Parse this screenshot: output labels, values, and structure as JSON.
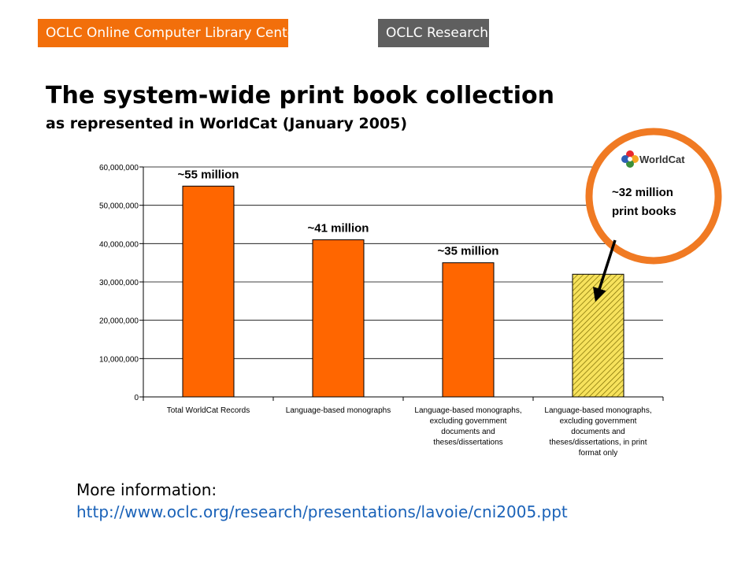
{
  "header": {
    "oclc_badge": "OCLC Online Computer Library Center",
    "research_badge": "OCLC Research"
  },
  "colors": {
    "orange": "#f26f0b",
    "grey": "#5f5f5f",
    "bar_orange": "#ff6600",
    "bar_hatch": "#f7e25c",
    "link": "#1a62b8"
  },
  "title": "The system-wide print book collection",
  "subtitle": "as represented in WorldCat (January 2005)",
  "chart_data": {
    "type": "bar",
    "categories": [
      [
        "Total WorldCat Records"
      ],
      [
        "Language-based monographs"
      ],
      [
        "Language-based monographs,",
        "excluding government",
        "documents and",
        "theses/dissertations"
      ],
      [
        "Language-based monographs,",
        "excluding government",
        "documents and",
        "theses/dissertations, in print",
        "format only"
      ]
    ],
    "values": [
      55000000,
      41000000,
      35000000,
      32000000
    ],
    "data_labels": [
      "~55 million",
      "~41 million",
      "~35 million",
      ""
    ],
    "bar_styles": [
      "solid",
      "solid",
      "solid",
      "hatched"
    ],
    "ylim": [
      0,
      60000000
    ],
    "yticks": [
      0,
      10000000,
      20000000,
      30000000,
      40000000,
      50000000,
      60000000
    ],
    "ytick_labels": [
      "0",
      "10,000,000",
      "20,000,000",
      "30,000,000",
      "40,000,000",
      "50,000,000",
      "60,000,000"
    ],
    "grid": true,
    "xlabel": "",
    "ylabel": "",
    "callout": {
      "logo_text": "WorldCat",
      "lines": [
        "~32 million",
        "print books"
      ],
      "points_to_category": 3
    }
  },
  "footer": {
    "more_info_label": "More information:",
    "url": "http://www.oclc.org/research/presentations/lavoie/cni2005.ppt"
  }
}
